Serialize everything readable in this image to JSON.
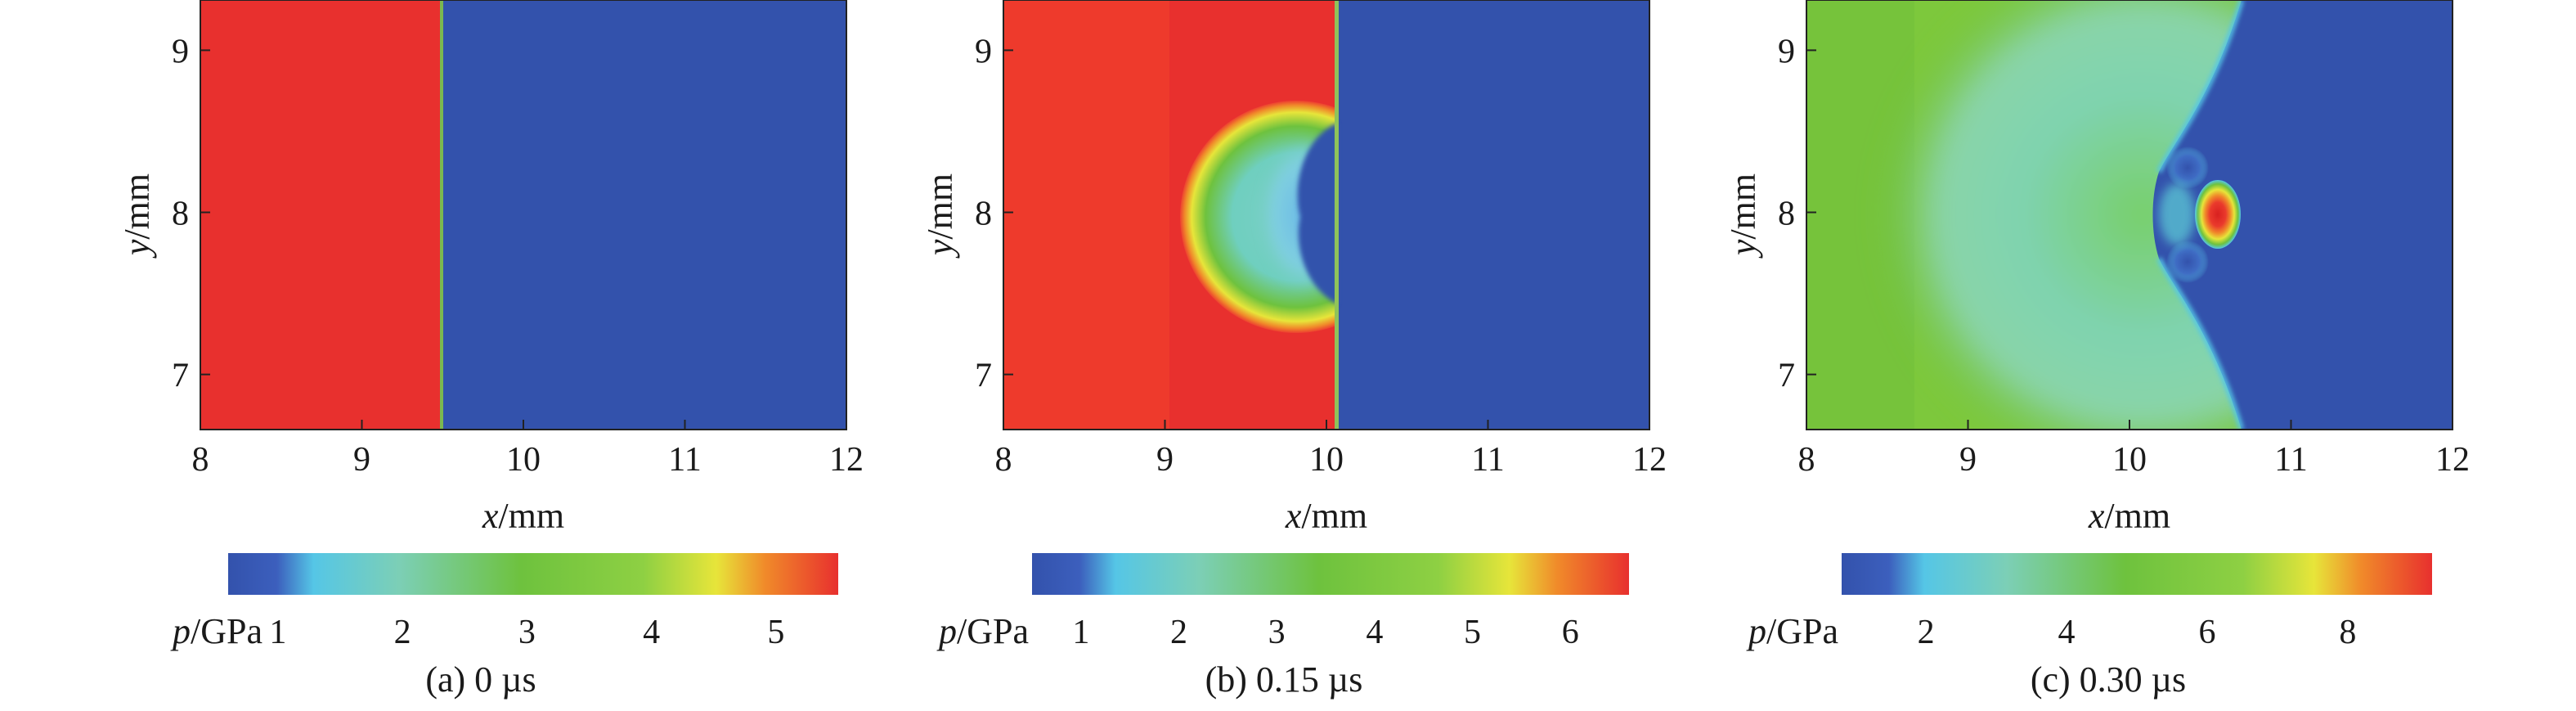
{
  "chart_data": [
    {
      "type": "heatmap",
      "caption": "(a) 0 µs",
      "time_label": "0 µs",
      "xlabel_var": "x",
      "ylabel_var": "y",
      "unit": "/mm",
      "xlim": [
        8,
        12
      ],
      "ylim": [
        6.66,
        9.31
      ],
      "xticks": [
        8,
        9,
        10,
        11,
        12
      ],
      "yticks": [
        7,
        8,
        9
      ],
      "field": {
        "background_pressure_gpa": 1.0,
        "driver_pressure_gpa": 5.3,
        "interface_x_mm": 9.5,
        "driver_region": "x < 9.5"
      },
      "colorbar": {
        "label_var": "p",
        "label_unit": "/GPa",
        "ticks": [
          1,
          2,
          3,
          4,
          5
        ],
        "range": [
          0.6,
          5.5
        ]
      }
    },
    {
      "type": "heatmap",
      "caption": "(b) 0.15 µs",
      "time_label": "0.15 µs",
      "xlabel_var": "x",
      "ylabel_var": "y",
      "unit": "/mm",
      "xlim": [
        8,
        12
      ],
      "ylim": [
        6.66,
        9.31
      ],
      "xticks": [
        8,
        9,
        10,
        11,
        12
      ],
      "yticks": [
        7,
        8,
        9
      ],
      "field": {
        "background_pressure_gpa": 1.0,
        "driver_pressure_gpa": 6.0,
        "shock_front_x_mm": 10.1,
        "bubble_center_mm": [
          9.85,
          8.0
        ],
        "bubble_radius_mm": 0.72,
        "bubble_core_pressure_gpa": 2.2
      },
      "colorbar": {
        "label_var": "p",
        "label_unit": "/GPa",
        "ticks": [
          1,
          2,
          3,
          4,
          5,
          6
        ],
        "range": [
          0.5,
          6.6
        ]
      }
    },
    {
      "type": "heatmap",
      "caption": "(c) 0.30 µs",
      "time_label": "0.30 µs",
      "xlabel_var": "x",
      "ylabel_var": "y",
      "unit": "/mm",
      "xlim": [
        8,
        12
      ],
      "ylim": [
        6.66,
        9.31
      ],
      "xticks": [
        8,
        9,
        10,
        11,
        12
      ],
      "yticks": [
        7,
        8,
        9
      ],
      "field": {
        "background_pressure_gpa": 1.0,
        "shocked_pressure_gpa": 5.2,
        "shock_front_x_mm": 10.7,
        "hotspot_center_mm": [
          10.55,
          8.0
        ],
        "hotspot_peak_pressure_gpa": 9.0
      },
      "colorbar": {
        "label_var": "p",
        "label_unit": "/GPa",
        "ticks": [
          2,
          4,
          6,
          8
        ],
        "range": [
          0.8,
          9.2
        ]
      }
    }
  ],
  "colors": {
    "blue": "#3352ac",
    "cyan": "#55c6e6",
    "teal": "#7ccfb6",
    "green": "#6ec23e",
    "yellow": "#e7e53a",
    "orange": "#f08a2a",
    "red": "#e8302e"
  }
}
